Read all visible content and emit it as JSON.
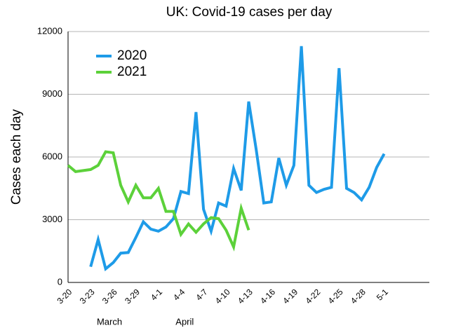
{
  "chart_data": {
    "type": "line",
    "title": "UK: Covid-19 cases per day",
    "ylabel": "Cases each day",
    "categories": [
      "3-20",
      null,
      null,
      "3-23",
      null,
      null,
      "3-26",
      null,
      null,
      "3-29",
      null,
      null,
      "4-1",
      null,
      null,
      "4-4",
      null,
      null,
      "4-7",
      null,
      null,
      "4-10",
      null,
      null,
      "4-13",
      null,
      null,
      "4-16",
      null,
      null,
      "4-19",
      null,
      null,
      "4-22",
      null,
      null,
      "4-25",
      null,
      null,
      "4-28",
      null,
      null,
      "5-1",
      null,
      null,
      null,
      null,
      null,
      null
    ],
    "series": [
      {
        "name": "2020",
        "color": "#1e9be8",
        "values": [
          null,
          null,
          null,
          750,
          2050,
          650,
          950,
          1400,
          1430,
          2150,
          2900,
          2550,
          2450,
          2650,
          3050,
          4350,
          4250,
          8150,
          3500,
          2450,
          3800,
          3650,
          5450,
          4400,
          8650,
          6350,
          3800,
          3850,
          5950,
          4650,
          5600,
          11300,
          4650,
          4300,
          4450,
          4550,
          10250,
          4500,
          4300,
          3950,
          4550,
          5500,
          6150,
          null,
          null,
          null,
          null,
          null,
          null
        ]
      },
      {
        "name": "2021",
        "color": "#5cd13a",
        "values": [
          5600,
          5300,
          5350,
          5400,
          5600,
          6250,
          6200,
          4650,
          3850,
          4650,
          4050,
          4050,
          4500,
          3400,
          3400,
          2300,
          2800,
          2400,
          2800,
          3100,
          3050,
          2500,
          1700,
          3550,
          2500,
          null,
          null,
          null,
          null,
          null,
          null,
          null,
          null,
          null,
          null,
          null,
          null,
          null,
          null,
          null,
          null,
          null,
          null,
          null,
          null,
          null,
          null,
          null,
          null
        ]
      }
    ],
    "annotations": [
      "March",
      "April"
    ],
    "ylim": [
      0,
      12000
    ],
    "yticks": [
      0,
      3000,
      6000,
      9000,
      12000
    ],
    "grid": true,
    "legend": "upper left"
  }
}
